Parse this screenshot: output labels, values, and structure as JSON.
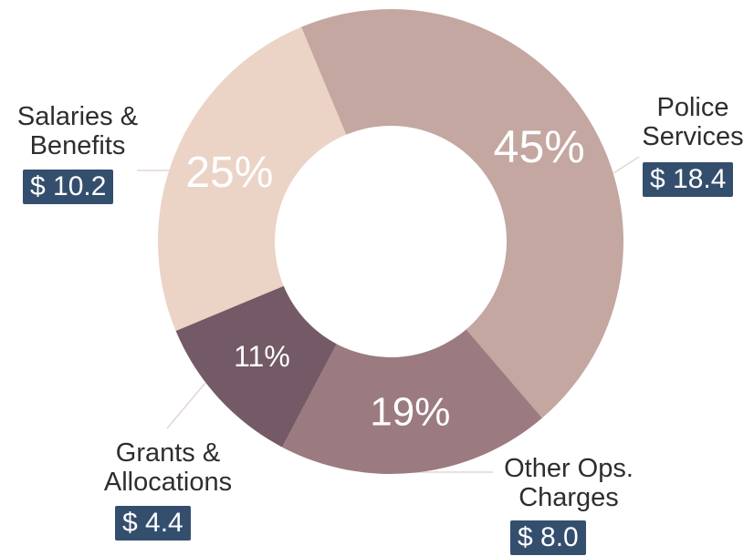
{
  "chart_data": {
    "type": "donut",
    "categories": [
      "Police Services",
      "Other Ops. Charges",
      "Grants & Allocations",
      "Salaries & Benefits"
    ],
    "values": [
      45,
      19,
      11,
      25
    ],
    "value_labels": [
      "45%",
      "19%",
      "11%",
      "25%"
    ],
    "amounts": [
      18.4,
      8.0,
      4.4,
      10.2
    ],
    "amount_labels": [
      "$ 18.4",
      "$ 8.0",
      "$ 4.4",
      "$ 10.2"
    ],
    "colors": [
      "#c3a7a0",
      "#9b7b80",
      "#735a66",
      "#ebd3c6"
    ]
  }
}
